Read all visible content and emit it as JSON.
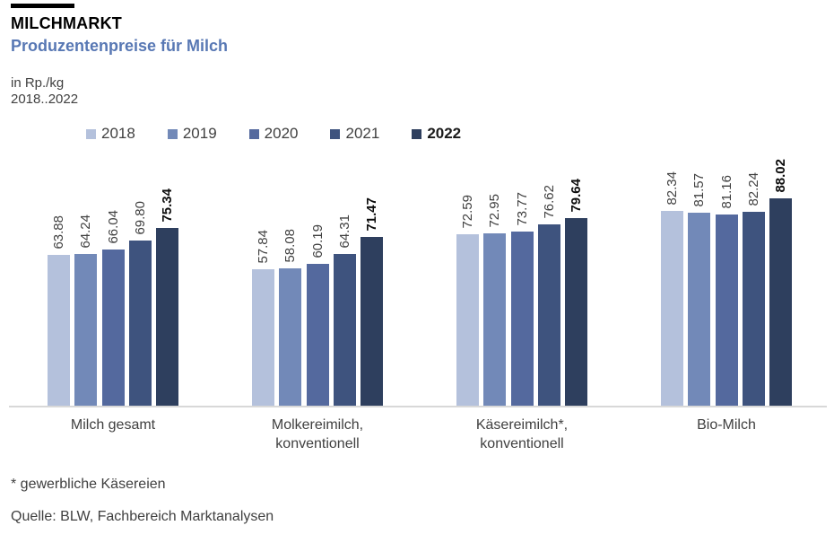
{
  "header": {
    "kicker": "MILCHMARKT",
    "title": "Produzentenpreise für Milch",
    "unit": "in Rp./kg",
    "period": "2018..2022"
  },
  "colors": {
    "title_accent": "#5878b4",
    "axis_line": "#d8d8d8",
    "text": "#404040"
  },
  "chart_data": {
    "type": "bar",
    "title": "Produzentenpreise für Milch",
    "ylabel": "in Rp./kg",
    "ylim": [
      0,
      95
    ],
    "grid": false,
    "legend_position": "top",
    "value_labels": "rotated-90-above-bars",
    "categories": [
      "Milch gesamt",
      "Molkereimilch,\nkonventionell",
      "Käsereimilch*,\nkonventionell",
      "Bio-Milch"
    ],
    "series": [
      {
        "name": "2018",
        "color": "#b4c1dc",
        "emphasis": false,
        "values": [
          63.88,
          57.84,
          72.59,
          82.34
        ]
      },
      {
        "name": "2019",
        "color": "#7289b8",
        "emphasis": false,
        "values": [
          64.24,
          58.08,
          72.95,
          81.57
        ]
      },
      {
        "name": "2020",
        "color": "#54699e",
        "emphasis": false,
        "values": [
          66.04,
          60.19,
          73.77,
          81.16
        ]
      },
      {
        "name": "2021",
        "color": "#3e537e",
        "emphasis": false,
        "values": [
          69.8,
          64.31,
          76.62,
          82.24
        ]
      },
      {
        "name": "2022",
        "color": "#2e3f5e",
        "emphasis": true,
        "values": [
          75.34,
          71.47,
          79.64,
          88.02
        ]
      }
    ]
  },
  "footer": {
    "footnote": "* gewerbliche Käsereien",
    "source": "Quelle: BLW, Fachbereich Marktanalysen"
  }
}
